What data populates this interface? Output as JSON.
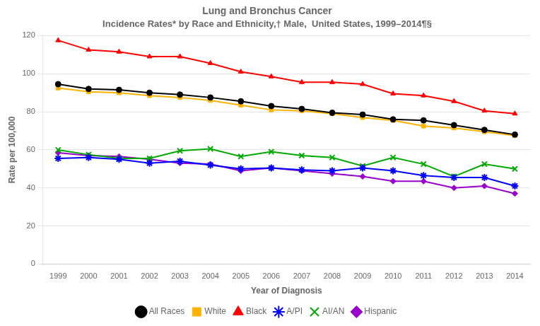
{
  "chart_data": {
    "type": "line",
    "title": "Lung and Bronchus Cancer",
    "subtitle": "Incidence Rates* by Race and Ethnicity,† Male,  United States, 1999–2014¶§",
    "x_label": "Year of Diagnosis",
    "y_label": "Rate per 100,000",
    "x": [
      1999,
      2000,
      2001,
      2002,
      2003,
      2004,
      2005,
      2006,
      2007,
      2008,
      2009,
      2010,
      2011,
      2012,
      2013,
      2014
    ],
    "xlim": [
      1998.5,
      2014.5
    ],
    "xticks": [
      1999,
      2000,
      2001,
      2002,
      2003,
      2004,
      2005,
      2006,
      2007,
      2008,
      2009,
      2010,
      2011,
      2012,
      2013,
      2014
    ],
    "ylim": [
      0,
      120
    ],
    "yticks": [
      0,
      20,
      40,
      60,
      80,
      100,
      120
    ],
    "grid": "y",
    "legend": "bottom",
    "series": [
      {
        "name": "All Races",
        "color": "#000000",
        "marker": "circle",
        "values": [
          94.5,
          92.0,
          91.5,
          90.0,
          89.0,
          87.5,
          85.5,
          83.0,
          81.5,
          79.5,
          78.5,
          76.0,
          75.5,
          73.0,
          70.5,
          68.0
        ]
      },
      {
        "name": "White",
        "color": "#FFB300",
        "marker": "square",
        "values": [
          92.5,
          90.5,
          90.0,
          88.5,
          87.5,
          86.0,
          83.5,
          81.0,
          80.5,
          79.0,
          77.0,
          75.5,
          72.5,
          71.5,
          69.5,
          67.5
        ]
      },
      {
        "name": "Black",
        "color": "#FF0000",
        "marker": "triangle",
        "values": [
          117.5,
          112.5,
          111.5,
          109.0,
          109.0,
          105.5,
          101.0,
          98.5,
          95.5,
          95.5,
          94.5,
          89.5,
          88.5,
          85.5,
          80.5,
          79.0
        ]
      },
      {
        "name": "A/PI",
        "color": "#0000FF",
        "marker": "star",
        "values": [
          55.5,
          56.0,
          55.0,
          53.0,
          54.0,
          52.0,
          50.0,
          50.5,
          49.5,
          49.0,
          50.5,
          49.0,
          46.5,
          45.5,
          45.5,
          41.0
        ]
      },
      {
        "name": "AI/AN",
        "color": "#00AA00",
        "marker": "x",
        "values": [
          60.0,
          57.5,
          55.5,
          55.5,
          59.5,
          60.5,
          56.5,
          59.0,
          57.0,
          56.0,
          51.5,
          56.0,
          52.5,
          46.0,
          52.5,
          50.0
        ]
      },
      {
        "name": "Hispanic",
        "color": "#9900CC",
        "marker": "diamond",
        "values": [
          58.5,
          57.0,
          56.5,
          55.0,
          53.0,
          52.5,
          49.0,
          50.5,
          49.0,
          47.5,
          46.0,
          43.5,
          43.5,
          40.0,
          41.0,
          37.0
        ]
      }
    ]
  }
}
